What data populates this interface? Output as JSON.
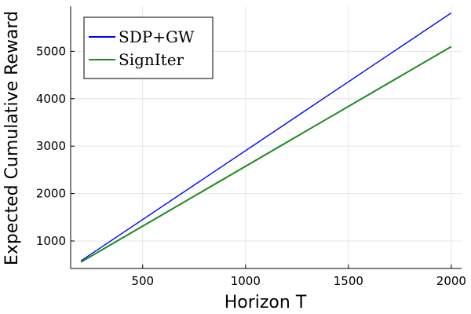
{
  "chart_data": {
    "type": "line",
    "xlabel": "Horizon T",
    "ylabel": "Expected Cumulative Reward",
    "xlim": [
      150,
      2050
    ],
    "ylim": [
      420,
      5950
    ],
    "xticks": [
      500,
      1000,
      1500,
      2000
    ],
    "yticks": [
      1000,
      2000,
      3000,
      4000,
      5000
    ],
    "grid": true,
    "legend_position": "top-left",
    "series": [
      {
        "name": "SDP+GW",
        "color": "#0000ff",
        "x": [
          200,
          2000
        ],
        "y": [
          580,
          5810
        ]
      },
      {
        "name": "SignIter",
        "color": "#1f8a1f",
        "x": [
          200,
          2000
        ],
        "y": [
          555,
          5100
        ]
      }
    ]
  }
}
